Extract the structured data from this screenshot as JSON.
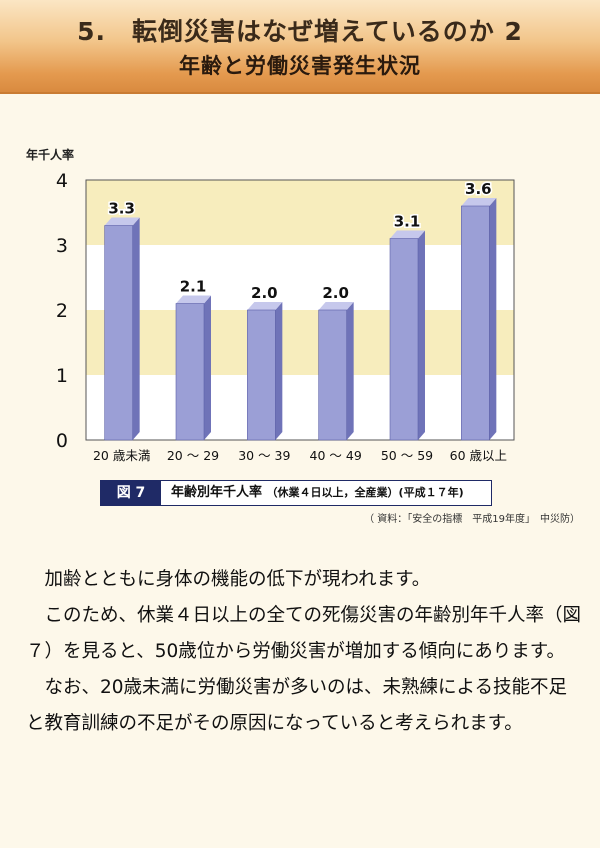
{
  "header": {
    "title": "5.　転倒災害はなぜ増えているのか 2",
    "subtitle": "年齢と労働災害発生状況"
  },
  "chart_data": {
    "type": "bar",
    "ylabel": "年千人率",
    "ylim": [
      0,
      4
    ],
    "yticks": [
      "0",
      "1",
      "2",
      "3",
      "4"
    ],
    "categories": [
      "20 歳未満",
      "20 ～ 29",
      "30 ～ 39",
      "40 ～ 49",
      "50 ～ 59",
      "60 歳以上"
    ],
    "values": [
      3.3,
      2.1,
      2.0,
      2.0,
      3.1,
      3.6
    ],
    "value_labels": [
      "3.3",
      "2.1",
      "2.0",
      "2.0",
      "3.1",
      "3.6"
    ],
    "band_colors": [
      "#ffffff",
      "#f7edbd"
    ],
    "bar_front": "#9b9fd6",
    "bar_side": "#6f73b8",
    "bar_top": "#c6c8ec"
  },
  "caption": {
    "figure": "図 7",
    "text": "年齢別年千人率",
    "note": "（休業４日以上，全産業）(平成１７年)"
  },
  "source": "（ 資料：「安全の指標　平成19年度」　中災防）",
  "body": {
    "p1": "加齢とともに身体の機能の低下が現われます。",
    "p2": "このため、休業４日以上の全ての死傷災害の年齢別年千人率（図７）を見ると、50歳位から労働災害が増加する傾向にあります。",
    "p3": "なお、20歳未満に労働災害が多いのは、未熟練による技能不足と教育訓練の不足がその原因になっていると考えられます。"
  }
}
